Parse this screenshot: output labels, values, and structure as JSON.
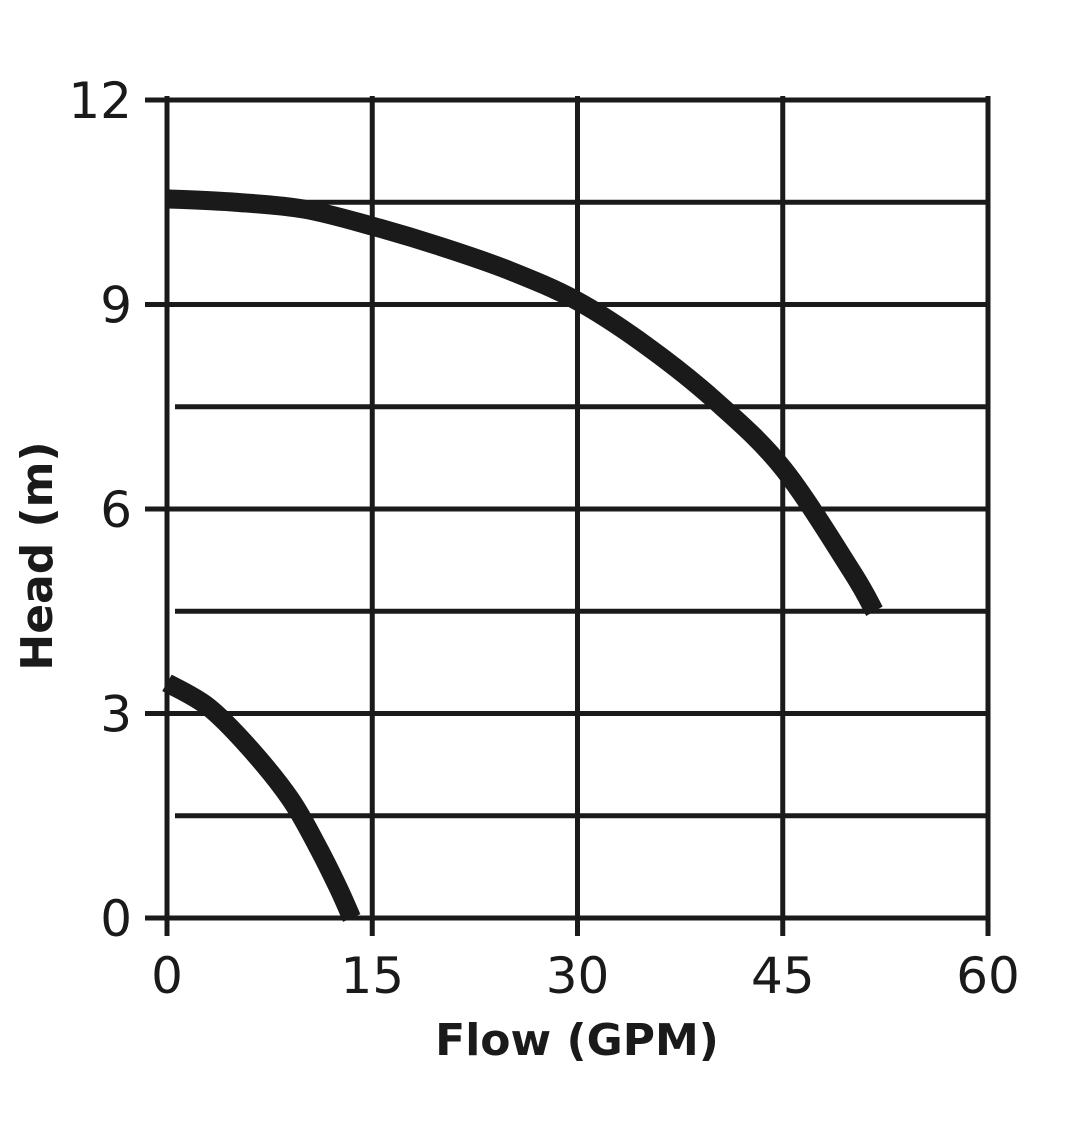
{
  "chart_data": {
    "type": "line",
    "title": "",
    "xlabel": "Flow (GPM)",
    "ylabel": "Head (m)",
    "xlim": [
      0,
      60
    ],
    "ylim": [
      0,
      12
    ],
    "x_ticks": [
      "0",
      "15",
      "30",
      "45",
      "60"
    ],
    "y_ticks": [
      "0",
      "3",
      "6",
      "9",
      "12"
    ],
    "grid": true,
    "colors": {
      "line": "#1a1a1a",
      "grid": "#1a1a1a",
      "background": "#ffffff"
    },
    "series": [
      {
        "x": [
          0,
          5,
          10,
          15,
          20,
          25,
          30,
          35,
          40,
          45,
          50,
          51.7
        ],
        "y": [
          10.55,
          10.5,
          10.4,
          10.15,
          9.85,
          9.5,
          9.05,
          8.4,
          7.6,
          6.6,
          5.1,
          4.5
        ]
      },
      {
        "x": [
          0,
          3,
          6,
          9,
          11,
          12.5,
          13.5
        ],
        "y": [
          3.45,
          3.1,
          2.5,
          1.75,
          1.05,
          0.45,
          0
        ]
      }
    ]
  }
}
